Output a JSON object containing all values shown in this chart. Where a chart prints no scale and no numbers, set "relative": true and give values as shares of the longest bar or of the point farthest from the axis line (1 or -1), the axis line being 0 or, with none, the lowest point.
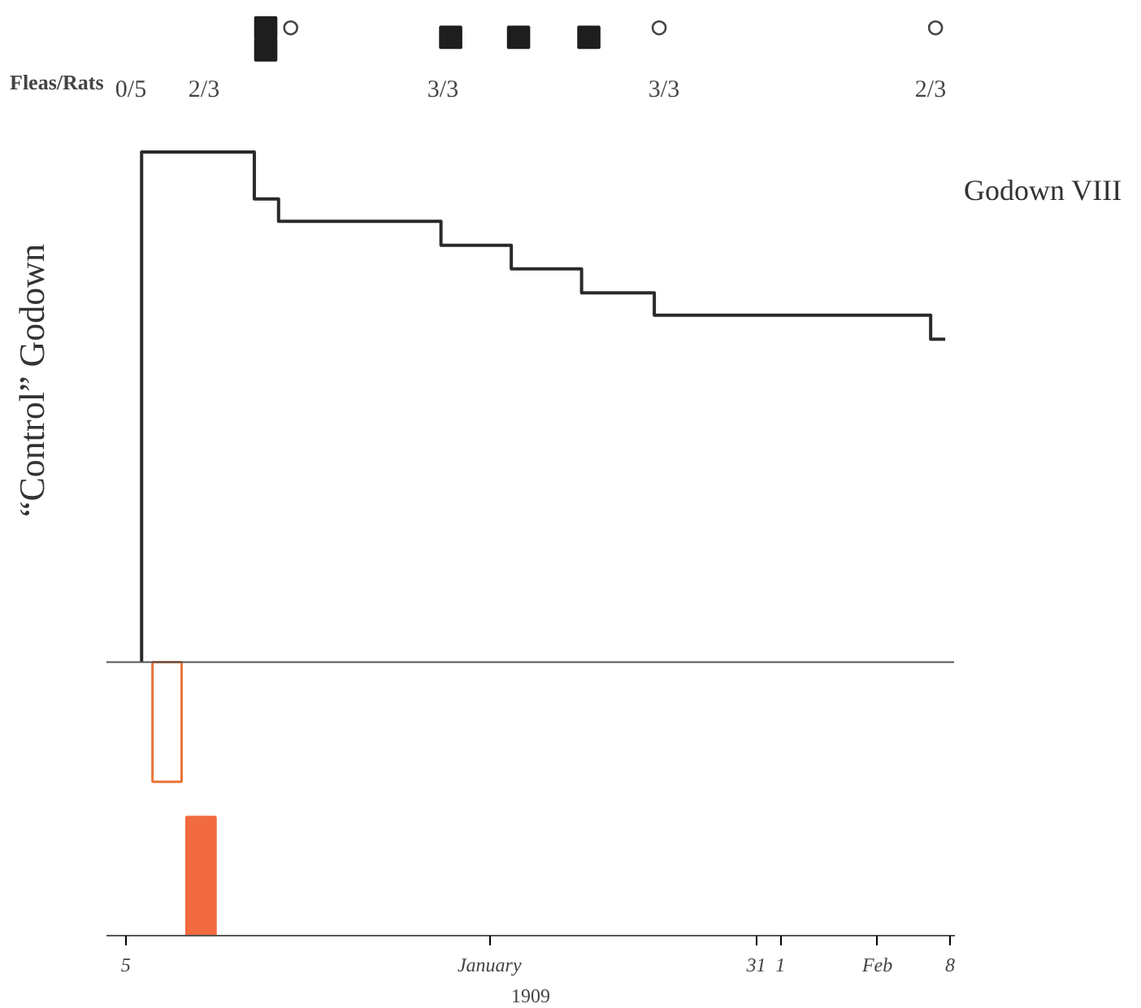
{
  "chart_data": [
    {
      "type": "step",
      "relative": true,
      "title": "Godown VIII",
      "ylabel": "“Control” Godown",
      "tick_labels": false,
      "xlim": [
        "1909-01-04T04:48",
        "1909-02-08T04:48"
      ],
      "series": [
        {
          "color": "#2a2a2a",
          "x": [
            "1909-01-05T15:36",
            "1909-01-05T15:36",
            "1909-01-10T07:12",
            "1909-01-11T07:12",
            "1909-01-18",
            "1909-01-20T21:36",
            "1909-01-23T19:12",
            "1909-01-26T19:12",
            "1909-02-07T04:48",
            "1909-02-07T19:12"
          ],
          "values": [
            0,
            0.804,
            0.73,
            0.695,
            0.657,
            0.62,
            0.582,
            0.547,
            0.509,
            0.509
          ]
        },
        {
          "type": "bar",
          "color": "#e8733a",
          "x": [
            "1909-01-06T16:48"
          ],
          "values": [
            -0.189
          ]
        },
        {
          "type": "scatter",
          "marker": "square",
          "color": "#1e1e1e",
          "x": [
            "1909-01-10T18:30",
            "1909-01-10T18:30",
            "1909-01-18T09:36",
            "1909-01-21T04:48",
            "1909-01-24T02:24"
          ],
          "values": [
            1.0,
            0.965,
            0.985,
            0.985,
            0.985
          ]
        },
        {
          "type": "scatter",
          "marker": "circle",
          "color": "#444444",
          "x": [
            "1909-01-11T19:12",
            "1909-01-27",
            "1909-02-07T09:36"
          ],
          "values": [
            1.0,
            1.0,
            1.0
          ]
        }
      ],
      "ref_lines": [
        {
          "axis": "y",
          "value": 0,
          "label": null,
          "color": "#555555"
        }
      ],
      "annotations": [
        "Fleas/Rats",
        "0/5",
        "2/3",
        "3/3",
        "3/3",
        "2/3"
      ]
    },
    {
      "type": "bar",
      "relative": true,
      "xlabel": "1909",
      "xlim": [
        "1909-01-04T04:48",
        "1909-02-08T04:48"
      ],
      "xticks": [
        {
          "value": "1909-01-05",
          "label": "5"
        },
        {
          "value": "1909-01-20",
          "label": "January"
        },
        {
          "value": "1909-01-31",
          "label": "31"
        },
        {
          "value": "1909-02-01",
          "label": "1"
        },
        {
          "value": "1909-02-05",
          "label": "Feb"
        },
        {
          "value": "1909-02-08",
          "label": "8"
        }
      ],
      "series": [
        {
          "color": "#f26a3f",
          "x": [
            "1909-01-08T02:24"
          ],
          "values": [
            1.0
          ]
        }
      ]
    }
  ]
}
